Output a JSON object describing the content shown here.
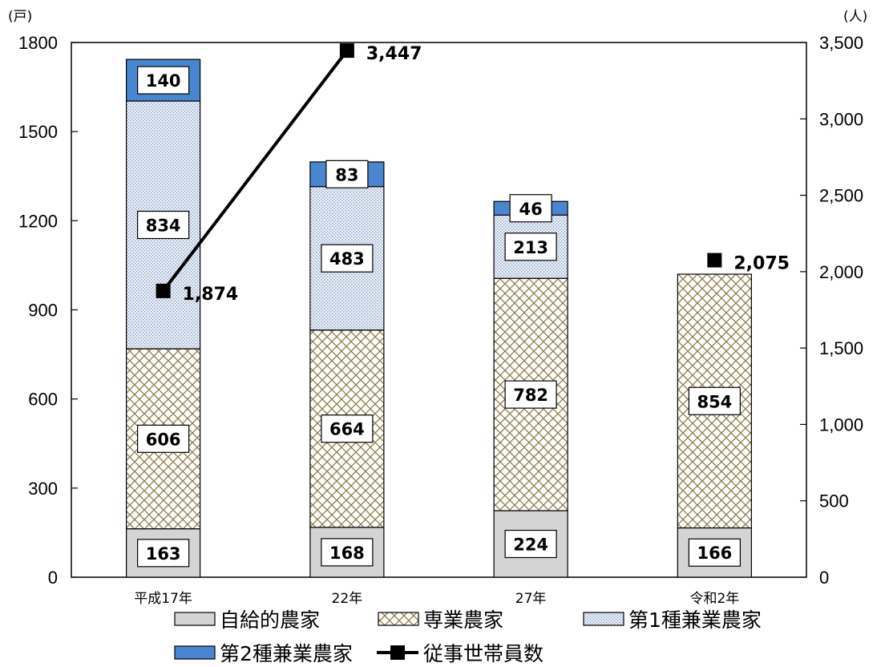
{
  "chart_data": {
    "type": "bar",
    "stacked": true,
    "categories": [
      "平成17年",
      "22年",
      "27年",
      "令和2年"
    ],
    "series": [
      {
        "name": "自給的農家",
        "values": [
          163,
          168,
          224,
          166
        ],
        "color": "#d4d4d4",
        "pattern": "solid"
      },
      {
        "name": "専業農家",
        "values": [
          606,
          664,
          782,
          854
        ],
        "color": "#8c7a45",
        "pattern": "crosshatch"
      },
      {
        "name": "第1種兼業農家",
        "values": [
          834,
          483,
          213,
          null
        ],
        "color": "#dfe7f2",
        "pattern": "dots"
      },
      {
        "name": "第2種兼業農家",
        "values": [
          140,
          83,
          46,
          null
        ],
        "color": "#4a86cf",
        "pattern": "solid"
      }
    ],
    "line_series": {
      "name": "従事世帯員数",
      "axis": "right",
      "values": [
        1874,
        3447,
        null,
        2075
      ],
      "labels": [
        "1,874",
        "3,447",
        "",
        "2,075"
      ]
    },
    "left_axis": {
      "unit": "(戸)",
      "ylim": [
        0,
        1800
      ],
      "ticks": [
        0,
        300,
        600,
        900,
        1200,
        1500,
        1800
      ],
      "tick_labels": [
        "0",
        "300",
        "600",
        "900",
        "1200",
        "1500",
        "1800"
      ]
    },
    "right_axis": {
      "unit": "(人)",
      "ylim": [
        0,
        3500
      ],
      "ticks": [
        0,
        500,
        1000,
        1500,
        2000,
        2500,
        3000,
        3500
      ],
      "tick_labels": [
        "0",
        "500",
        "1,000",
        "1,500",
        "2,000",
        "2,500",
        "3,000",
        "3,500"
      ]
    },
    "legend": {
      "placement": "bottom",
      "items": [
        "自給的農家",
        "専業農家",
        "第1種兼業農家",
        "第2種兼業農家",
        "従事世帯員数"
      ]
    }
  }
}
